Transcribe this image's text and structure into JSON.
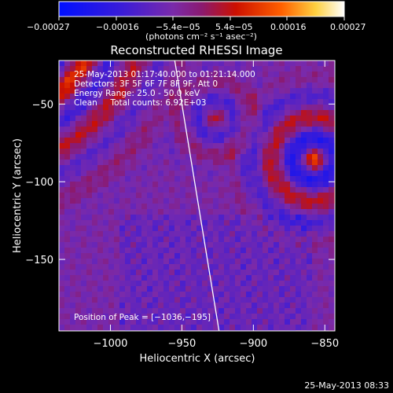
{
  "chart_data": {
    "type": "heatmap",
    "title": "Reconstructed RHESSI Image",
    "xlabel": "Heliocentric X (arcsec)",
    "ylabel": "Heliocentric Y (arcsec)",
    "xlim": [
      -1036,
      -843
    ],
    "ylim": [
      -196,
      -22
    ],
    "xticks": [
      "−1000",
      "−950",
      "−900",
      "−850"
    ],
    "xtick_values": [
      -1000,
      -950,
      -900,
      -850
    ],
    "yticks": [
      "−50",
      "−100",
      "−150"
    ],
    "ytick_values": [
      -50,
      -100,
      -150
    ],
    "colorbar": {
      "range": [
        -0.00027,
        0.00027
      ],
      "tick_labels": [
        "−0.00027",
        "−0.00016",
        "−5.4e−05",
        "5.4e−05",
        "0.00016",
        "0.00027"
      ],
      "units": "(photons cm⁻² s⁻¹ asec⁻²)",
      "colors": [
        "#0000ff",
        "#7a2aaa",
        "#cc1000",
        "#ff7000",
        "#ffffff"
      ]
    },
    "annotations": [
      "25-May-2013 01:17:40.000 to 01:21:14.000",
      "Detectors: 3F 5F 6F 7F 8F 9F, Att 0",
      "Energy Range: 25.0 - 50.0 keV",
      "Clean     Total counts: 6.92E+03"
    ],
    "peak_label": "Position of Peak = [−1036,−195]",
    "limb_line": {
      "x": [
        -955,
        -924
      ],
      "y": [
        -22,
        -196
      ]
    },
    "footer": "25-May-2013 08:33"
  }
}
